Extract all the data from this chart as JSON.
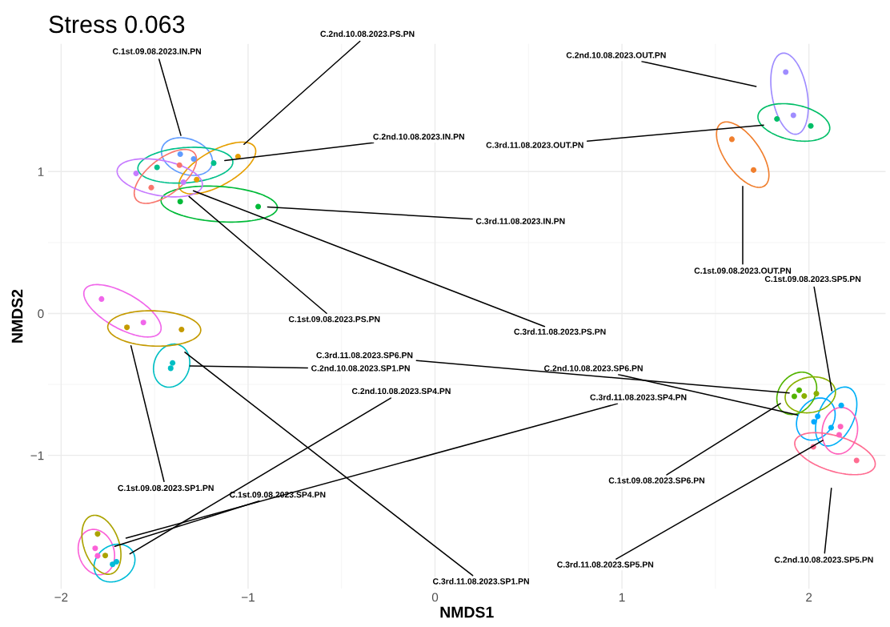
{
  "chart_data": {
    "type": "scatter",
    "title": "Stress 0.063",
    "xlabel": "NMDS1",
    "ylabel": "NMDS2",
    "xlim": [
      -2.07,
      2.41
    ],
    "ylim": [
      -1.94,
      1.9
    ],
    "xticks": [
      {
        "value": -2,
        "label": "−2"
      },
      {
        "value": -1,
        "label": "−1"
      },
      0,
      1,
      2
    ],
    "yticks": [
      {
        "value": -1,
        "label": "−1"
      },
      0,
      1
    ],
    "grid": true,
    "legend": false,
    "marker": "circle",
    "series": [
      {
        "color": "#619cff",
        "x": [
          -1.363,
          -1.291
        ],
        "values": [
          1.123,
          1.089
        ]
      },
      {
        "color": "#e69f00",
        "x": [
          -1.054,
          -1.275
        ],
        "values": [
          1.106,
          0.944
        ]
      },
      {
        "color": "#00c08b",
        "x": [
          -1.487,
          -1.184
        ],
        "values": [
          1.03,
          1.06
        ]
      },
      {
        "color": "#00ba38",
        "x": [
          -1.363,
          -0.946
        ],
        "values": [
          0.789,
          0.753
        ]
      },
      {
        "color": "#f8766d",
        "x": [
          -1.367,
          -1.518
        ],
        "values": [
          1.045,
          0.887
        ]
      },
      {
        "color": "#c77cff",
        "x": [
          -1.599,
          -1.346
        ],
        "values": [
          0.987,
          0.925
        ]
      },
      {
        "color": "#9f8cff",
        "x": [
          1.876,
          1.917
        ],
        "values": [
          1.701,
          1.397
        ]
      },
      {
        "color": "#00be67",
        "x": [
          1.829,
          2.01
        ],
        "values": [
          1.371,
          1.322
        ]
      },
      {
        "color": "#f07f2e",
        "x": [
          1.588,
          1.704
        ],
        "values": [
          1.228,
          1.011
        ]
      },
      {
        "color": "#00bfc4",
        "x": [
          -1.404,
          -1.414
        ],
        "values": [
          -0.349,
          -0.386
        ]
      },
      {
        "color": "#f066ea",
        "x": [
          -1.784,
          -1.56
        ],
        "values": [
          0.102,
          -0.064
        ]
      },
      {
        "color": "#c49a00",
        "x": [
          -1.648,
          -1.356
        ],
        "values": [
          -0.098,
          -0.113
        ]
      },
      {
        "color": "#fb61d7",
        "x": [
          -1.818,
          -1.805
        ],
        "values": [
          -1.655,
          -1.708
        ]
      },
      {
        "color": "#00bcd8",
        "x": [
          -1.725,
          -1.704
        ],
        "values": [
          -1.768,
          -1.75
        ]
      },
      {
        "color": "#aba300",
        "x": [
          -1.805,
          -1.764
        ],
        "values": [
          -1.554,
          -1.706
        ]
      },
      {
        "color": "#00b0f6",
        "x": [
          2.173,
          2.119
        ],
        "values": [
          -0.648,
          -0.804
        ]
      },
      {
        "color": "#00a9ff",
        "x": [
          2.047,
          2.027
        ],
        "values": [
          -0.725,
          -0.763
        ]
      },
      {
        "color": "#53b400",
        "x": [
          1.948,
          1.922
        ],
        "values": [
          -0.541,
          -0.584
        ]
      },
      {
        "color": "#ff62bc",
        "x": [
          2.169,
          2.162
        ],
        "values": [
          -0.797,
          -0.855
        ]
      },
      {
        "color": "#8ab000",
        "x": [
          1.975,
          2.04
        ],
        "values": [
          -0.582,
          -0.565
        ]
      },
      {
        "color": "#ff6c91",
        "x": [
          2.024,
          2.255
        ],
        "values": [
          -0.94,
          -1.036
        ]
      }
    ],
    "annotations": [
      "C.1st.09.08.2023.IN.PN",
      "C.2nd.10.08.2023.PS.PN",
      "C.2nd.10.08.2023.IN.PN",
      "C.3rd.11.08.2023.IN.PN",
      "C.1st.09.08.2023.PS.PN",
      "C.3rd.11.08.2023.PS.PN",
      "C.2nd.10.08.2023.OUT.PN",
      "C.3rd.11.08.2023.OUT.PN",
      "C.1st.09.08.2023.OUT.PN",
      "C.2nd.10.08.2023.SP1.PN",
      "C.1st.09.08.2023.SP1.PN",
      "C.3rd.11.08.2023.SP1.PN",
      "C.1st.09.08.2023.SP4.PN",
      "C.2nd.10.08.2023.SP4.PN",
      "C.3rd.11.08.2023.SP4.PN",
      "C.1st.09.08.2023.SP5.PN",
      "C.2nd.10.08.2023.SP6.PN",
      "C.1st.09.08.2023.SP6.PN",
      "C.3rd.11.08.2023.SP5.PN",
      "C.3rd.11.08.2023.SP6.PN",
      "C.2nd.10.08.2023.SP5.PN"
    ]
  }
}
